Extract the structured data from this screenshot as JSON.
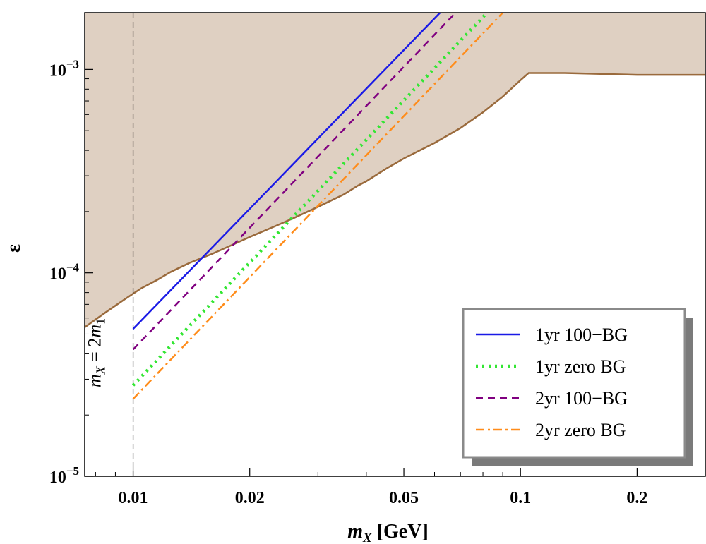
{
  "chart_data": {
    "type": "line",
    "xlabel": "m_X [GeV]",
    "ylabel": "ε",
    "x_scale": "log",
    "y_scale": "log",
    "xlim": [
      0.0075,
      0.3
    ],
    "ylim": [
      1e-05,
      0.0019
    ],
    "x_ticks": [
      {
        "value": 0.01,
        "label": "0.01"
      },
      {
        "value": 0.02,
        "label": "0.02"
      },
      {
        "value": 0.05,
        "label": "0.05"
      },
      {
        "value": 0.1,
        "label": "0.1"
      },
      {
        "value": 0.2,
        "label": "0.2"
      }
    ],
    "y_ticks": [
      {
        "value": 0.001,
        "base": "10",
        "exp": "−3"
      },
      {
        "value": 0.0001,
        "base": "10",
        "exp": "−4"
      },
      {
        "value": 1e-05,
        "base": "10",
        "exp": "−5"
      }
    ],
    "excluded_region": {
      "color": "#dfd0c2",
      "border_color": "#9a6a3c",
      "boundary": {
        "x": [
          0.0075,
          0.0085,
          0.0095,
          0.0105,
          0.0115,
          0.0125,
          0.014,
          0.016,
          0.018,
          0.02,
          0.023,
          0.026,
          0.03,
          0.035,
          0.038,
          0.04,
          0.045,
          0.05,
          0.06,
          0.07,
          0.08,
          0.09,
          0.1,
          0.105,
          0.13,
          0.2,
          0.3
        ],
        "y": [
          5.4e-05,
          6.4e-05,
          7.4e-05,
          8.4e-05,
          9.2e-05,
          0.000101,
          0.000112,
          0.000124,
          0.000137,
          0.00015,
          0.000168,
          0.000186,
          0.000211,
          0.000243,
          0.000268,
          0.000282,
          0.000325,
          0.000365,
          0.000435,
          0.000515,
          0.000615,
          0.000735,
          0.000885,
          0.00096,
          0.00096,
          0.00094,
          0.00094
        ]
      }
    },
    "reference_line": {
      "x": 0.01,
      "label_parts": [
        "m",
        "X",
        " = 2",
        "m",
        "1"
      ]
    },
    "series": [
      {
        "name": "1yr 100−BG",
        "color": "#1a1ae6",
        "dash": "solid",
        "x": [
          0.01,
          0.062
        ],
        "y": [
          5.3e-05,
          0.0019
        ]
      },
      {
        "name": "1yr zero BG",
        "color": "#33e633",
        "dash": "dotted",
        "x": [
          0.01,
          0.082
        ],
        "y": [
          2.8e-05,
          0.0019
        ]
      },
      {
        "name": "2yr 100−BG",
        "color": "#800080",
        "dash": "dashed",
        "x": [
          0.01,
          0.068
        ],
        "y": [
          4.2e-05,
          0.0019
        ]
      },
      {
        "name": "2yr zero BG",
        "color": "#ff8c1a",
        "dash": "dashdot",
        "x": [
          0.01,
          0.09
        ],
        "y": [
          2.4e-05,
          0.0019
        ]
      }
    ],
    "legend": {
      "position": "bottom-right"
    }
  }
}
